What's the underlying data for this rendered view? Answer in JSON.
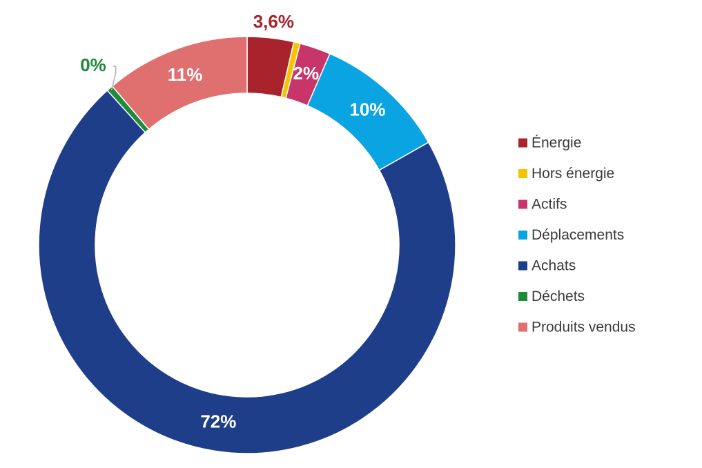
{
  "chart_data": {
    "type": "pie",
    "variant": "donut",
    "title": "",
    "categories": [
      "Énergie",
      "Hors énergie",
      "Actifs",
      "Déplacements",
      "Achats",
      "Déchets",
      "Produits vendus"
    ],
    "values": [
      3.6,
      0.5,
      2.4,
      10.3,
      71.5,
      0.5,
      11.2
    ],
    "value_labels": [
      "3,6%",
      "",
      "2%",
      "10%",
      "72%",
      "0%",
      "11%"
    ],
    "colors": [
      "#A8232B",
      "#F5C400",
      "#C7356A",
      "#0BA4E3",
      "#1F3E8A",
      "#1E8A3A",
      "#E07070"
    ],
    "label_colors": [
      "#A8232B",
      "#F5C400",
      "#ffffff",
      "#ffffff",
      "#ffffff",
      "#1E8A3A",
      "#ffffff"
    ],
    "legend": {
      "position": "right",
      "items": [
        "Énergie",
        "Hors énergie",
        "Actifs",
        "Déplacements",
        "Achats",
        "Déchets",
        "Produits vendus"
      ]
    }
  }
}
